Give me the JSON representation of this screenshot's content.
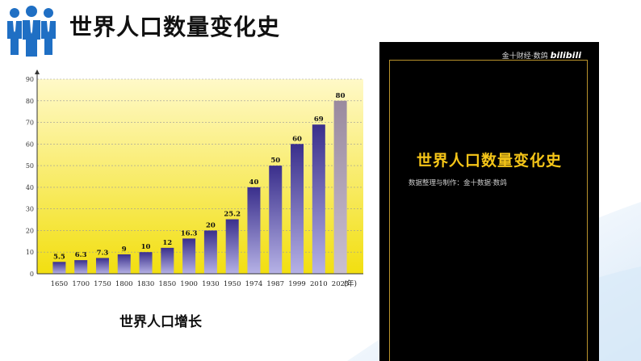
{
  "header": {
    "title": "世界人口数量变化史",
    "icon": "people-group-icon",
    "accent_color": "#1f6fc4"
  },
  "caption": "世界人口增长",
  "video": {
    "brand_text": "金十财经·数鸽",
    "brand_logo": "bilibili",
    "title": "世界人口数量变化史",
    "subtitle": "数据整理与制作：金十数据·数鸽"
  },
  "chart_data": {
    "type": "bar",
    "categories": [
      "1650",
      "1700",
      "1750",
      "1800",
      "1830",
      "1850",
      "1900",
      "1930",
      "1950",
      "1974",
      "1987",
      "1999",
      "2010",
      "2025"
    ],
    "values": [
      5.5,
      6.3,
      7.3,
      9,
      10,
      12,
      16.3,
      20,
      25.2,
      40,
      50,
      60,
      69,
      80
    ],
    "value_labels": [
      "5.5",
      "6.3",
      "7.3",
      "9",
      "10",
      "12",
      "16.3",
      "20",
      "25.2",
      "40",
      "50",
      "60",
      "69",
      "80"
    ],
    "projected_index": 13,
    "xunit": "(年)",
    "yticks": [
      "0",
      "10",
      "20",
      "30",
      "40",
      "50",
      "60",
      "70",
      "80",
      "90"
    ],
    "ylim": [
      0,
      90
    ],
    "grid": true,
    "colors": {
      "bar_top": "#3a2f8c",
      "bar_bottom": "#b6b2e6",
      "projected_top": "#9a8a9e",
      "projected_bottom": "#c9bfd0",
      "bg_top": "#fff9c8",
      "bg_bottom": "#f2df10"
    }
  }
}
